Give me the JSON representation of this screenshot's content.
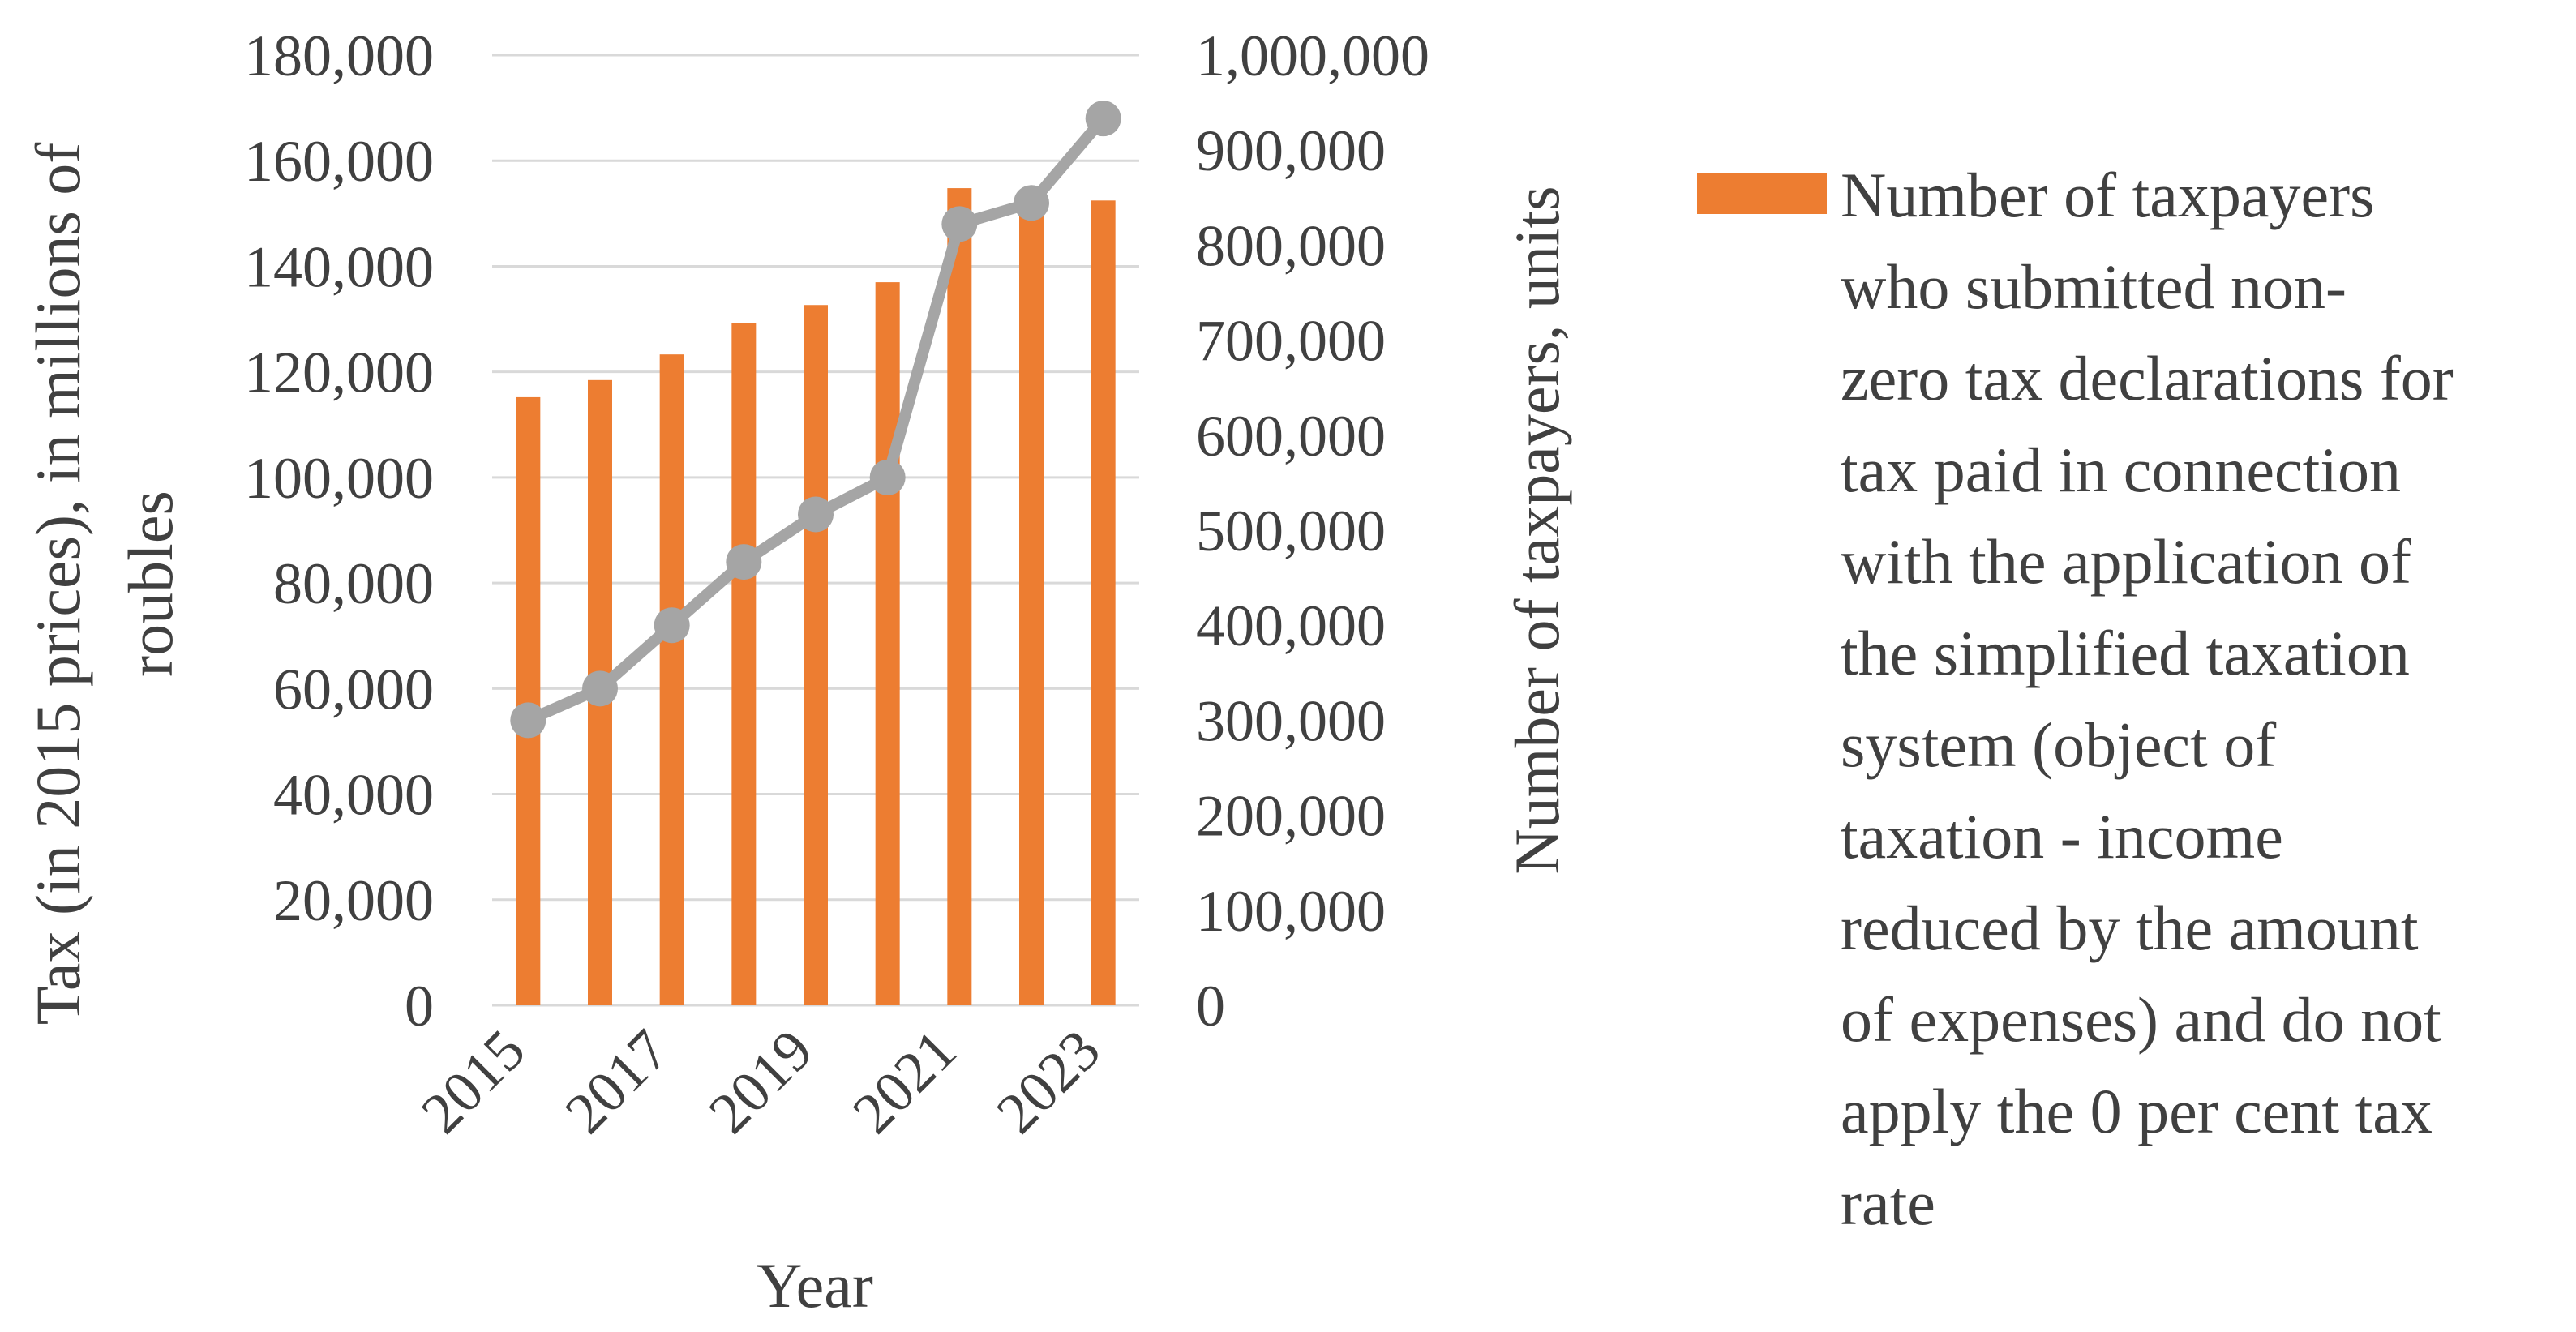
{
  "chart_data": {
    "type": "bar",
    "categories": [
      "2015",
      "2016",
      "2017",
      "2018",
      "2019",
      "2020",
      "2021",
      "2022",
      "2023"
    ],
    "x_tick_labels": [
      "2015",
      "2017",
      "2019",
      "2021",
      "2023"
    ],
    "xlabel": "Year",
    "ylabel_left": "Tax (in 2015 prices), in millions of roubles",
    "ylabel_left_lines": [
      "Tax (in 2015 prices), in millions of",
      "roubles"
    ],
    "ylabel_right": "Number of taxpayers, units",
    "ylim_left": [
      0,
      180000
    ],
    "ylim_right": [
      0,
      1000000
    ],
    "left_ticks": [
      "0",
      "20,000",
      "40,000",
      "60,000",
      "80,000",
      "100,000",
      "120,000",
      "140,000",
      "160,000",
      "180,000"
    ],
    "right_ticks": [
      "0",
      "100,000",
      "200,000",
      "300,000",
      "400,000",
      "500,000",
      "600,000",
      "700,000",
      "800,000",
      "900,000",
      "1,000,000"
    ],
    "grid": true,
    "legend_position": "right",
    "series": [
      {
        "name": "Number of taxpayers who submitted non-zero tax declarations for tax paid in connection with the application of the simplified taxation system (object of taxation - income reduced by the amount of expenses) and do not apply the 0 per cent tax rate",
        "type": "bar",
        "axis": "right",
        "color": "#ED7D31",
        "values": [
          640000,
          658000,
          685000,
          718000,
          737000,
          761000,
          860000,
          855000,
          847000
        ]
      },
      {
        "name": "Tax (in 2015 prices)",
        "type": "line",
        "axis": "left",
        "color": "#A5A5A5",
        "values": [
          54000,
          60000,
          72000,
          84000,
          93000,
          100000,
          148000,
          152000,
          168000
        ]
      }
    ],
    "legend_lines": [
      "Number of taxpayers",
      "who submitted non-",
      "zero tax declarations for",
      "tax paid in connection",
      "with the application of",
      "the simplified taxation",
      "system (object of",
      "taxation - income",
      "reduced by the amount",
      "of expenses) and do not",
      "apply the 0 per cent tax",
      "rate"
    ]
  }
}
